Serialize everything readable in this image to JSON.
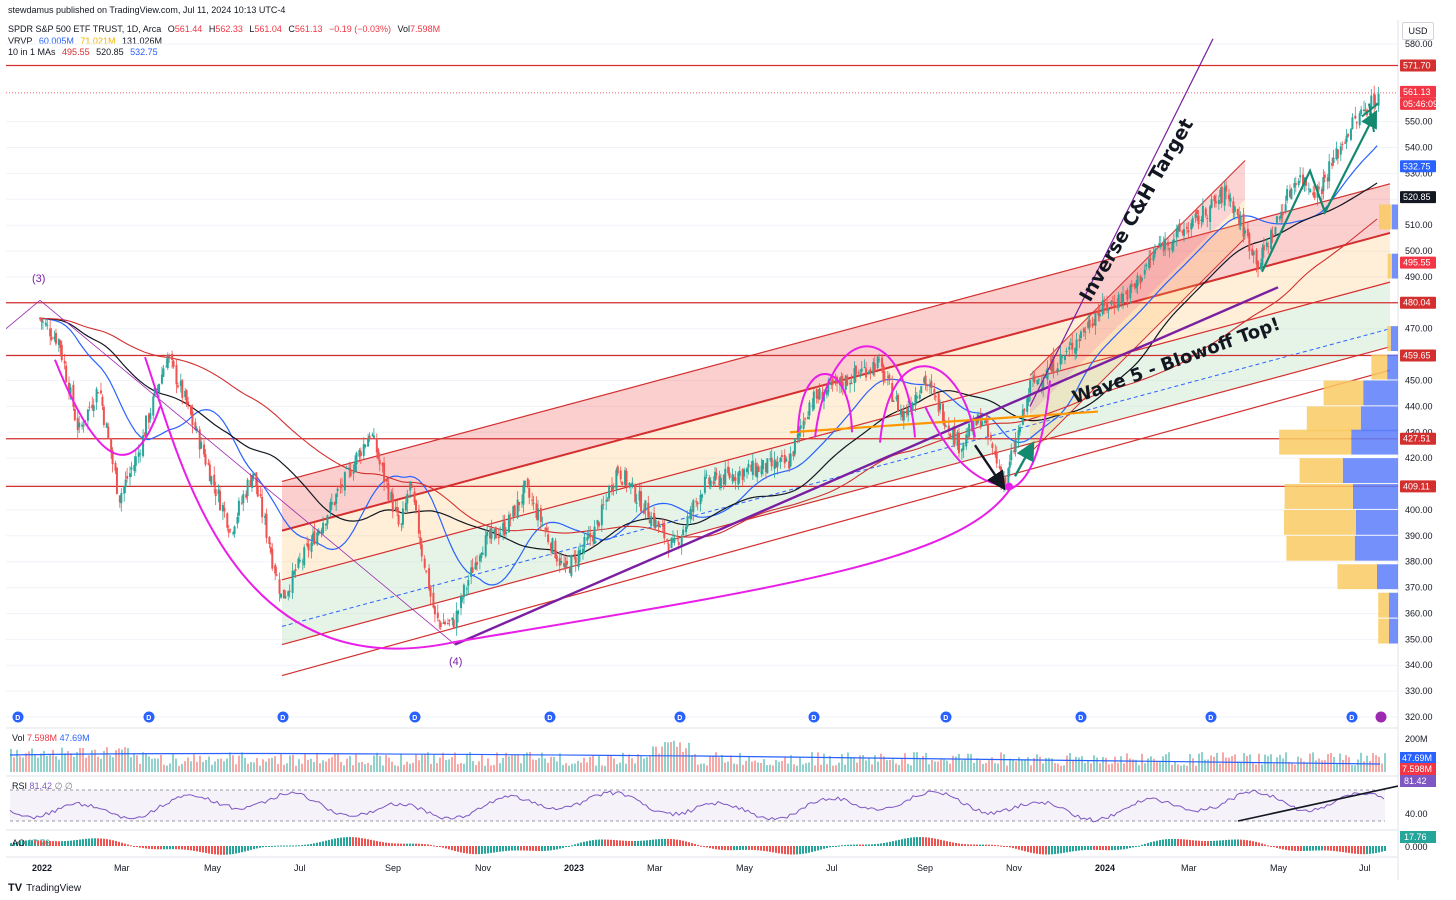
{
  "publisher": "stewdamus published on TradingView.com, Jul 11, 2024 10:13 UTC-4",
  "legend": {
    "symbol": "SPDR S&P 500 ETF TRUST, 1D, Arca",
    "o_label": "O",
    "o": "561.44",
    "h_label": "H",
    "h": "562.33",
    "l_label": "L",
    "l": "561.04",
    "c_label": "C",
    "c": "561.13",
    "change": "−0.19 (−0.03%)",
    "vol_label": "Vol",
    "vol": "7.598M",
    "vrvp_label": "VRVP",
    "vrvp_1": "60.005M",
    "vrvp_2": "71.021M",
    "vrvp_3": "131.026M",
    "ma_label": "10 in 1 MAs",
    "ma_1": "495.55",
    "ma_2": "520.85",
    "ma_3": "532.75"
  },
  "currency": "USD",
  "volume_panel": {
    "label": "Vol",
    "v1": "7.598M",
    "v2": "47.69M",
    "tag_1": "47.69M",
    "tag_2": "7.598M",
    "tick": "200M"
  },
  "rsi_panel": {
    "label": "RSI",
    "value": "81.42",
    "symbols": "∅ ∅",
    "tag": "81.42",
    "tick": "40.00"
  },
  "ao_panel": {
    "label": "AO",
    "value": "17.76",
    "tag": "17.76",
    "tick": "0.000"
  },
  "footer": {
    "logo": "TV",
    "brand": "TradingView"
  },
  "colors": {
    "up": "#26a69a",
    "down": "#ef5350",
    "magenta": "#e91ee8",
    "purple": "#7b1fa2",
    "red": "#d32f2f",
    "blue": "#2962ff",
    "black": "#131722",
    "orange": "#ff9800",
    "teal": "#138a6f"
  },
  "chart_data": {
    "type": "candlestick",
    "ylim": [
      320,
      584
    ],
    "y_ticks": [
      320,
      330,
      340,
      350,
      360,
      370,
      380,
      390,
      400,
      410,
      420,
      430,
      440,
      450,
      460,
      470,
      480,
      490,
      500,
      510,
      520,
      530,
      540,
      550,
      580
    ],
    "x_tick_labels": [
      "2022",
      "Mar",
      "May",
      "Jul",
      "Sep",
      "Nov",
      "2023",
      "Mar",
      "May",
      "Jul",
      "Sep",
      "Nov",
      "2024",
      "Mar",
      "May",
      "Jul"
    ],
    "close_points": [
      [
        "2021-12-31",
        474
      ],
      [
        "2022-01-14",
        465
      ],
      [
        "2022-01-27",
        430
      ],
      [
        "2022-02-10",
        448
      ],
      [
        "2022-02-24",
        405
      ],
      [
        "2022-03-08",
        420
      ],
      [
        "2022-03-29",
        460
      ],
      [
        "2022-04-12",
        440
      ],
      [
        "2022-04-29",
        412
      ],
      [
        "2022-05-12",
        392
      ],
      [
        "2022-05-27",
        415
      ],
      [
        "2022-06-16",
        366
      ],
      [
        "2022-07-07",
        388
      ],
      [
        "2022-07-29",
        411
      ],
      [
        "2022-08-16",
        430
      ],
      [
        "2022-09-06",
        392
      ],
      [
        "2022-09-12",
        410
      ],
      [
        "2022-09-30",
        357
      ],
      [
        "2022-10-12",
        356
      ],
      [
        "2022-10-31",
        386
      ],
      [
        "2022-11-18",
        394
      ],
      [
        "2022-12-01",
        408
      ],
      [
        "2022-12-28",
        376
      ],
      [
        "2023-01-18",
        392
      ],
      [
        "2023-02-02",
        416
      ],
      [
        "2023-03-13",
        385
      ],
      [
        "2023-04-03",
        410
      ],
      [
        "2023-05-01",
        415
      ],
      [
        "2023-05-31",
        418
      ],
      [
        "2023-06-15",
        442
      ],
      [
        "2023-07-31",
        457
      ],
      [
        "2023-08-18",
        436
      ],
      [
        "2023-09-01",
        451
      ],
      [
        "2023-09-26",
        425
      ],
      [
        "2023-10-11",
        436
      ],
      [
        "2023-10-27",
        410
      ],
      [
        "2023-11-14",
        448
      ],
      [
        "2023-12-08",
        460
      ],
      [
        "2023-12-29",
        476
      ],
      [
        "2024-01-23",
        485
      ],
      [
        "2024-02-09",
        501
      ],
      [
        "2024-03-08",
        512
      ],
      [
        "2024-03-28",
        523
      ],
      [
        "2024-04-19",
        495
      ],
      [
        "2024-05-15",
        529
      ],
      [
        "2024-05-30",
        523
      ],
      [
        "2024-06-20",
        547
      ],
      [
        "2024-07-11",
        561.13
      ]
    ],
    "horizontal_levels": [
      571.7,
      480.04,
      459.65,
      427.51,
      409.11
    ],
    "moving_averages": {
      "ma_495": 495.55,
      "ma_520": 520.85,
      "ma_532": 532.75
    },
    "price_tags": [
      {
        "label": "580.00",
        "value": 580,
        "bg": "none"
      },
      {
        "label": "571.70",
        "value": 571.7,
        "bg": "#d32f2f"
      },
      {
        "label": "561.13",
        "value": 561.13,
        "bg": "#f23645"
      },
      {
        "label": "05:46:09",
        "value": 561.13,
        "bg": "#f23645"
      },
      {
        "label": "532.75",
        "value": 532.75,
        "bg": "#2962ff"
      },
      {
        "label": "520.85",
        "value": 520.85,
        "bg": "#131722"
      },
      {
        "label": "495.55",
        "value": 495.55,
        "bg": "#f23645"
      },
      {
        "label": "480.04",
        "value": 480.04,
        "bg": "#d32f2f"
      },
      {
        "label": "459.65",
        "value": 459.65,
        "bg": "#d32f2f"
      },
      {
        "label": "427.51",
        "value": 427.51,
        "bg": "#d32f2f"
      },
      {
        "label": "409.11",
        "value": 409.11,
        "bg": "#d32f2f"
      }
    ],
    "annotations": [
      "(3)",
      "(4)",
      "Inverse C&H Target",
      "Wave 5 - Blowoff Top!"
    ],
    "volume_profile": [
      {
        "price": 445,
        "left": 0.55,
        "right": 0.58
      },
      {
        "price": 435,
        "left": 0.75,
        "right": 0.62
      },
      {
        "price": 426,
        "left": 1.0,
        "right": 0.78
      },
      {
        "price": 415,
        "left": 0.6,
        "right": 0.92
      },
      {
        "price": 405,
        "left": 0.95,
        "right": 0.75
      },
      {
        "price": 395,
        "left": 1.0,
        "right": 0.7
      },
      {
        "price": 385,
        "left": 0.95,
        "right": 0.72
      },
      {
        "price": 374,
        "left": 0.55,
        "right": 0.35
      },
      {
        "price": 363,
        "left": 0.15,
        "right": 0.15
      },
      {
        "price": 353,
        "left": 0.15,
        "right": 0.15
      },
      {
        "price": 466,
        "left": 0.05,
        "right": 0.12
      },
      {
        "price": 455,
        "left": 0.22,
        "right": 0.18
      },
      {
        "price": 494,
        "left": 0.06,
        "right": 0.1
      },
      {
        "price": 513,
        "left": 0.18,
        "right": 0.1
      }
    ]
  }
}
